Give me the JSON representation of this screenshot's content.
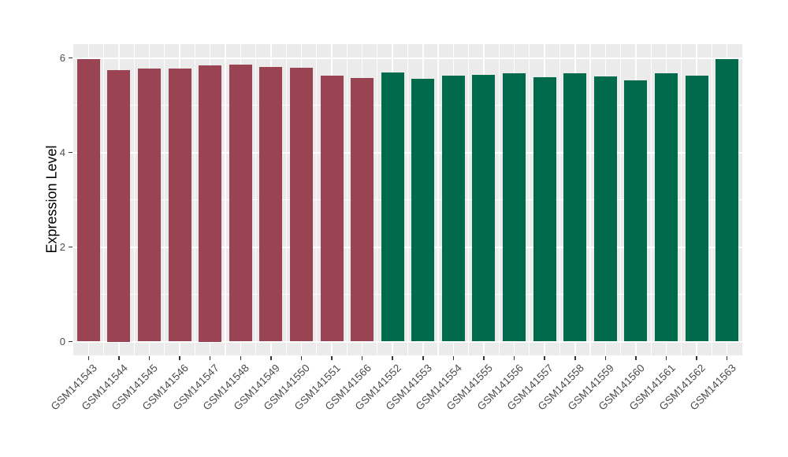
{
  "figure": {
    "background": "#FFFFFF",
    "panel_background": "#EBEBEB",
    "grid_color": "#FFFFFF",
    "tick_mark_color": "#333333",
    "axis_text_color": "#4D4D4D",
    "axis_title_color": "#000000"
  },
  "chart_data": {
    "type": "bar",
    "title": "",
    "xlabel": "",
    "ylabel": "Expression Level",
    "ylim": [
      0,
      6.3
    ],
    "ytick_labels": [
      "0",
      "2",
      "4",
      "6"
    ],
    "ygrid_major": [
      0,
      2,
      4,
      6
    ],
    "ygrid_minor": [
      1,
      3,
      5
    ],
    "grid": "on",
    "legend": "none",
    "categories": [
      "GSM141543",
      "GSM141544",
      "GSM141545",
      "GSM141546",
      "GSM141547",
      "GSM141548",
      "GSM141549",
      "GSM141550",
      "GSM141551",
      "GSM141566",
      "GSM141552",
      "GSM141553",
      "GSM141554",
      "GSM141555",
      "GSM141556",
      "GSM141557",
      "GSM141558",
      "GSM141559",
      "GSM141560",
      "GSM141561",
      "GSM141562",
      "GSM141563"
    ],
    "values": [
      5.98,
      5.75,
      5.77,
      5.78,
      5.85,
      5.86,
      5.81,
      5.79,
      5.62,
      5.57,
      5.69,
      5.56,
      5.62,
      5.64,
      5.68,
      5.59,
      5.68,
      5.61,
      5.52,
      5.67,
      5.62,
      5.97
    ],
    "groups": [
      "group1",
      "group1",
      "group1",
      "group1",
      "group1",
      "group1",
      "group1",
      "group1",
      "group1",
      "group1",
      "group2",
      "group2",
      "group2",
      "group2",
      "group2",
      "group2",
      "group2",
      "group2",
      "group2",
      "group2",
      "group2",
      "group2"
    ],
    "group_colors": {
      "group1": "#9A4352",
      "group2": "#006B4C"
    }
  }
}
